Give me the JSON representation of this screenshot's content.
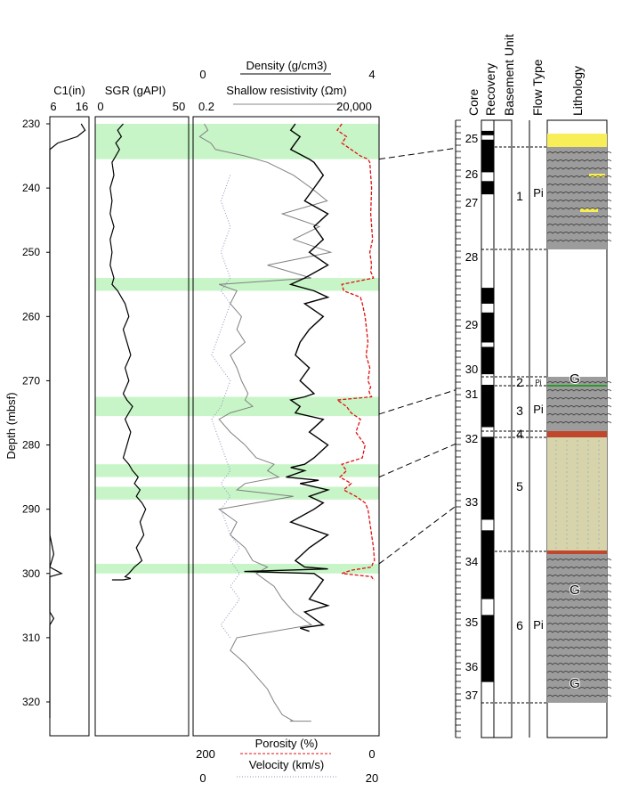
{
  "chart_data": {
    "type": "line",
    "ylabel": "Depth (mbsf)",
    "ylim": [
      230,
      325
    ],
    "yticks": [
      "230",
      "240",
      "250",
      "260",
      "270",
      "280",
      "290",
      "300",
      "310",
      "320"
    ],
    "tracks": [
      {
        "label": "C1(in)",
        "min_label": "6",
        "max_label": "16",
        "xlim": [
          6,
          16
        ],
        "series": [
          {
            "color": "#000000",
            "x": [
              14,
              15,
              13,
              8,
              6,
              6,
              6,
              6,
              6,
              6,
              6,
              6,
              6,
              6,
              6,
              6,
              6,
              6,
              6,
              6,
              6,
              6,
              6,
              6,
              6,
              6,
              6,
              6,
              6,
              6,
              6,
              6,
              6,
              6,
              6,
              6,
              6,
              6,
              6,
              7,
              6,
              9,
              6,
              6,
              6,
              6,
              6,
              7,
              6,
              6,
              6,
              6,
              6,
              6,
              6,
              6,
              6,
              6,
              6,
              6,
              6,
              6,
              6,
              6,
              6,
              6,
              6,
              6,
              6,
              6,
              6,
              6,
              6
            ],
            "y": [
              230,
              231,
              232,
              233,
              234,
              236,
              238,
              240,
              242,
              244,
              246,
              248,
              250,
              252,
              254,
              256,
              258,
              260,
              262,
              264,
              266,
              268,
              270,
              272,
              274,
              276,
              278,
              280,
              282,
              284,
              285,
              286,
              287,
              287.5,
              288,
              289,
              290,
              292,
              294,
              297,
              299,
              300,
              300.5,
              301,
              302,
              304,
              306,
              307,
              308,
              310,
              312,
              314,
              316,
              318,
              320,
              321,
              322,
              322.5,
              322.5,
              322.5,
              322.5,
              322.5,
              322.5,
              322.5,
              322.5,
              322.5,
              322.5,
              322.5,
              322.5,
              322.5,
              322.5,
              322.5,
              322.5
            ]
          }
        ]
      },
      {
        "label": "SGR (gAPI)",
        "min_label": "0",
        "max_label": "50",
        "xlim": [
          0,
          50
        ],
        "series": [
          {
            "color": "#000000",
            "x": [
              15,
              12,
              14,
              11,
              13,
              11,
              9,
              10,
              8,
              9,
              8,
              10,
              8,
              9,
              8,
              10,
              9,
              12,
              14,
              16,
              18,
              15,
              17,
              19,
              16,
              18,
              15,
              17,
              20,
              18,
              16,
              19,
              17,
              15,
              18,
              20,
              23,
              21,
              24,
              22,
              25,
              27,
              24,
              26,
              22,
              25,
              21,
              18,
              16,
              19,
              15,
              12,
              14,
              11,
              10,
              12,
              9,
              11,
              10,
              12,
              13,
              14
            ],
            "y": [
              230,
              231,
              232,
              233,
              234,
              235,
              236,
              238,
              240,
              242,
              244,
              246,
              248,
              250,
              252,
              254,
              255,
              256,
              257,
              258,
              260,
              262,
              264,
              266,
              268,
              270,
              272,
              273,
              274,
              275,
              276,
              278,
              280,
              282,
              283,
              284,
              285,
              286,
              287,
              288,
              289,
              290,
              292,
              294,
              296,
              298,
              299,
              300,
              300.5,
              300.8,
              301,
              301,
              301,
              301,
              301,
              301,
              301,
              301,
              301,
              301,
              301,
              301
            ]
          }
        ]
      },
      {
        "label": "Shallow resistivity (Ωm)",
        "top_label": "Density (g/cm3)",
        "density_min": "0",
        "density_max": "4",
        "min_label": "0.2",
        "max_label": "20,000",
        "bottom_labels": [
          {
            "name": "Porosity (%)",
            "min": "200",
            "max": "0"
          },
          {
            "name": "Velocity (km/s)",
            "min": "0",
            "max": "20"
          }
        ],
        "series": [
          {
            "name": "Density",
            "color": "#000000",
            "x": [
              2.2,
              2.1,
              2.3,
              2.2,
              2.1,
              2.5,
              2.6,
              2.8,
              2.6,
              2.4,
              2.9,
              2.6,
              2.8,
              2.5,
              2.9,
              2.4,
              2.1,
              2.6,
              2.9,
              2.4,
              2.8,
              2.5,
              2.3,
              2.2,
              2.5,
              2.3,
              2.6,
              2.4,
              2.1,
              2.3,
              2.2,
              2.8,
              2.5,
              2.9,
              2.6,
              2.4,
              2.1,
              2.4,
              2.0,
              2.7,
              2.3,
              2.9,
              2.5,
              2.8,
              2.6,
              2.1,
              2.9,
              2.5,
              2.2,
              2.3,
              2.4,
              2.9,
              1.1,
              2.6,
              2.8,
              2.7,
              2.5,
              2.9,
              2.4,
              2.6,
              2.8,
              2.3,
              2.5
            ],
            "y": [
              230,
              231,
              232,
              233,
              234,
              235.5,
              236,
              238,
              240,
              242,
              244,
              246,
              248,
              250,
              252,
              254,
              255,
              256,
              257,
              258,
              260,
              262,
              264,
              266,
              268,
              270,
              272,
              272.5,
              273,
              274,
              275,
              276,
              278,
              280,
              282,
              283,
              283.5,
              284,
              285,
              285.5,
              286,
              287,
              288,
              289,
              290,
              292,
              294,
              296,
              298,
              298.5,
              299,
              299.3,
              299.7,
              300,
              301,
              302,
              304,
              305,
              306,
              307,
              308,
              308.5,
              309
            ]
          },
          {
            "name": "Porosity",
            "color": "#e01010",
            "x": [
              40,
              45,
              35,
              40,
              30,
              20,
              12,
              10,
              8,
              9,
              7,
              10,
              8,
              9,
              6,
              40,
              38,
              20,
              18,
              15,
              12,
              14,
              10,
              12,
              9,
              11,
              10,
              8,
              45,
              35,
              30,
              20,
              25,
              15,
              18,
              40,
              35,
              42,
              30,
              38,
              25,
              15,
              12,
              10,
              8,
              6,
              5,
              7,
              8,
              30,
              40,
              8,
              6,
              5
            ],
            "y": [
              230,
              231,
              232,
              233,
              234,
              235,
              235.5,
              236,
              240,
              244,
              248,
              250,
              252,
              253,
              254,
              255,
              256,
              257,
              258,
              260,
              264,
              266,
              268,
              270,
              271,
              271.5,
              272,
              272.5,
              273,
              274,
              275,
              276,
              278,
              280,
              282,
              283,
              284,
              285,
              286,
              287,
              288,
              289,
              290,
              292,
              294,
              296,
              298,
              298.5,
              299,
              299.5,
              300,
              300.5,
              301,
              301
            ]
          },
          {
            "name": "Shallow resistivity",
            "color": "#808080",
            "x": [
              0.4,
              0.5,
              0.3,
              0.6,
              0.8,
              5,
              20,
              100,
              300,
              800,
              50,
              500,
              100,
              1000,
              20,
              300,
              1,
              3,
              2,
              4,
              3,
              5,
              2,
              3,
              4,
              6,
              5,
              8,
              2,
              1,
              2,
              5,
              10,
              30,
              20,
              40,
              5,
              3,
              100,
              10,
              1,
              3,
              2,
              5,
              8,
              20,
              10,
              30,
              50,
              100,
              300,
              3,
              2,
              5,
              10,
              20,
              30,
              50,
              100,
              200,
              300,
              100,
              80
            ],
            "y": [
              230,
              231,
              232,
              233,
              234,
              235,
              236,
              238,
              240,
              242,
              244,
              246,
              248,
              250,
              252,
              254,
              255,
              256,
              258,
              260,
              262,
              264,
              266,
              268,
              270,
              272,
              273,
              274,
              275,
              276,
              278,
              280,
              282,
              283,
              284,
              285,
              286,
              287,
              288,
              289,
              290,
              292,
              294,
              296,
              298,
              299,
              300,
              302,
              304,
              306,
              308,
              310,
              312,
              314,
              316,
              318,
              320,
              322,
              323,
              323,
              323,
              323,
              323
            ]
          },
          {
            "name": "Velocity",
            "color": "#9090c0",
            "x": [
              4,
              3,
              4,
              3,
              4,
              3,
              4,
              3,
              2,
              4,
              3,
              2,
              3,
              4,
              3,
              4,
              3,
              4,
              5,
              4,
              5,
              4,
              5,
              4,
              3,
              4
            ],
            "y": [
              238,
              242,
              246,
              250,
              254,
              256,
              258,
              262,
              266,
              270,
              274,
              276,
              280,
              284,
              286,
              288,
              290,
              294,
              296,
              298,
              300,
              302,
              304,
              306,
              308,
              310
            ]
          }
        ]
      }
    ],
    "highlight_intervals": [
      [
        230,
        235.5
      ],
      [
        254,
        256
      ],
      [
        272.5,
        275.5
      ],
      [
        283,
        285
      ],
      [
        286.5,
        288.5
      ],
      [
        298.5,
        300
      ]
    ],
    "correlation_lines": [
      [
        235.5,
        234.3
      ],
      [
        275.2,
        271.5
      ],
      [
        285,
        279.8
      ],
      [
        298.5,
        289.4
      ]
    ],
    "core_log": {
      "column_labels": [
        "Core",
        "Recovery",
        "Basement Unit",
        "Flow Type",
        "Lithology"
      ],
      "cores": [
        "25",
        "26",
        "27",
        "28",
        "29",
        "30",
        "31",
        "32",
        "33",
        "34",
        "35",
        "36",
        "37"
      ],
      "units": [
        {
          "label": "1",
          "flow": "Pi"
        },
        {
          "label": "2",
          "flow": "Pi"
        },
        {
          "label": "3",
          "flow": "Pi"
        },
        {
          "label": "4",
          "flow": ""
        },
        {
          "label": "5",
          "flow": ""
        },
        {
          "label": "6",
          "flow": "Pi"
        }
      ],
      "lithology_labels": [
        "G",
        "G",
        "G"
      ],
      "recovery": [
        [
          0.12,
          0.17
        ],
        [
          0.22,
          0.59
        ],
        [
          0.69,
          0.84
        ],
        [
          1.9,
          2.08
        ],
        [
          2.18,
          2.52
        ],
        [
          2.57,
          2.88
        ],
        [
          3.0,
          3.48
        ],
        [
          3.59,
          4.53
        ],
        [
          4.65,
          5.43
        ],
        [
          5.61,
          6.37
        ]
      ]
    }
  }
}
